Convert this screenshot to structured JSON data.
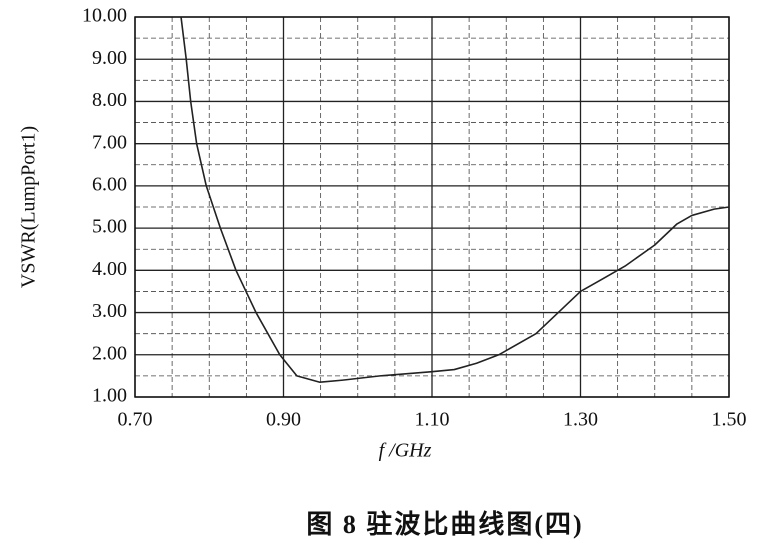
{
  "chart_data": {
    "type": "line",
    "y_label": "VSWR(LumpPort1)",
    "x_label": "f /GHz",
    "caption": "图 8   驻波比曲线图(四)",
    "x": [
      0.762,
      0.769,
      0.775,
      0.783,
      0.796,
      0.815,
      0.836,
      0.863,
      0.895,
      0.918,
      0.949,
      0.98,
      1.03,
      1.1,
      1.13,
      1.16,
      1.19,
      1.24,
      1.27,
      1.3,
      1.33,
      1.36,
      1.4,
      1.43,
      1.45,
      1.48,
      1.5
    ],
    "series": [
      {
        "color": "#222222",
        "values": [
          10,
          9,
          8,
          7,
          6,
          5,
          4,
          3,
          2,
          1.5,
          1.35,
          1.4,
          1.5,
          1.6,
          1.65,
          1.8,
          2.0,
          2.5,
          3.0,
          3.5,
          3.8,
          4.1,
          4.6,
          5.1,
          5.3,
          5.45,
          5.5
        ]
      }
    ],
    "xlim": [
      0.7,
      1.5
    ],
    "ylim": [
      1,
      10
    ],
    "xticks": [
      {
        "value": 0.7,
        "label": "0.70"
      },
      {
        "value": 0.9,
        "label": "0.90"
      },
      {
        "value": 1.1,
        "label": "1.10"
      },
      {
        "value": 1.3,
        "label": "1.30"
      },
      {
        "value": 1.5,
        "label": "1.50"
      }
    ],
    "yticks": [
      {
        "value": 1,
        "label": "1.00"
      },
      {
        "value": 2,
        "label": "2.00"
      },
      {
        "value": 3,
        "label": "3.00"
      },
      {
        "value": 4,
        "label": "4.00"
      },
      {
        "value": 5,
        "label": "5.00"
      },
      {
        "value": 6,
        "label": "6.00"
      },
      {
        "value": 7,
        "label": "7.00"
      },
      {
        "value": 8,
        "label": "8.00"
      },
      {
        "value": 9,
        "label": "9.00"
      },
      {
        "value": 10,
        "label": "10.00"
      }
    ],
    "grid": true
  }
}
